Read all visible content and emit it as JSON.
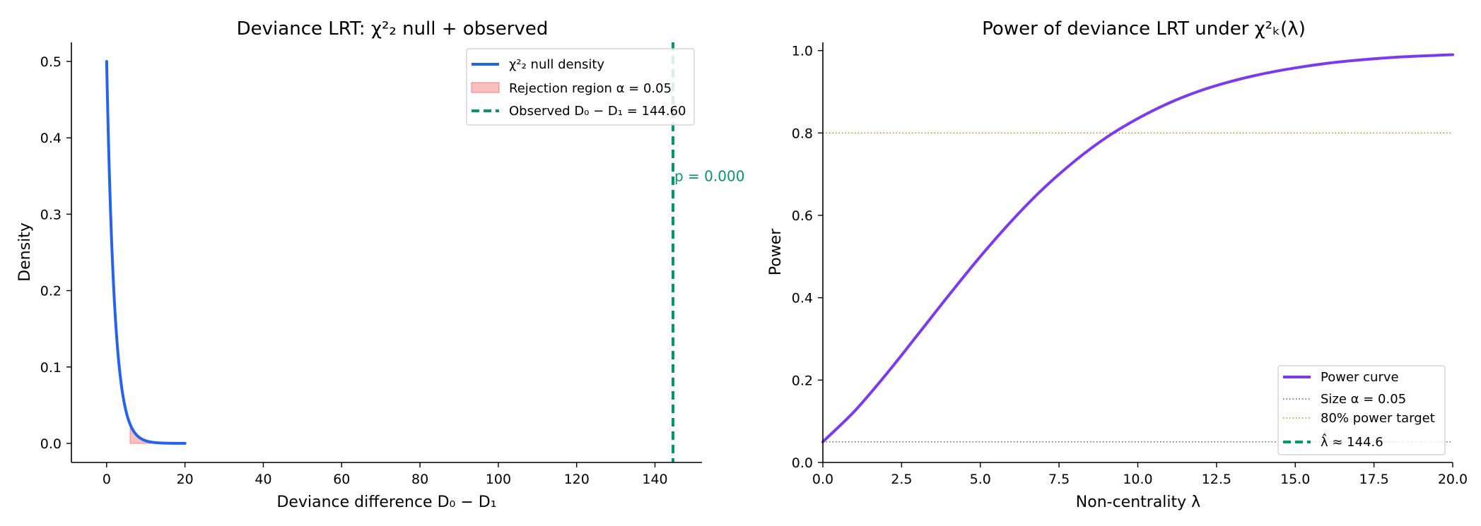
{
  "chart_data": [
    {
      "type": "line",
      "title": "Deviance LRT: χ²₂ null + observed",
      "xlabel": "Deviance difference D₀ − D₁",
      "ylabel": "Density",
      "xlim": [
        -9,
        152
      ],
      "ylim": [
        -0.025,
        0.525
      ],
      "xticks": [
        0,
        20,
        40,
        60,
        80,
        100,
        120,
        140
      ],
      "yticks": [
        0.0,
        0.1,
        0.2,
        0.3,
        0.4,
        0.5
      ],
      "xtick_labels": [
        "0",
        "20",
        "40",
        "60",
        "80",
        "100",
        "120",
        "140"
      ],
      "ytick_labels": [
        "0.0",
        "0.1",
        "0.2",
        "0.3",
        "0.4",
        "0.5"
      ],
      "grid": false,
      "legend_position": "top-right",
      "series": [
        {
          "name": "χ²₂ null density",
          "color": "#2563eb",
          "x": [
            0,
            1,
            2,
            3,
            4,
            5,
            6,
            7,
            8,
            10,
            12,
            14,
            16,
            18,
            20
          ],
          "y": [
            0.5,
            0.303,
            0.184,
            0.112,
            0.068,
            0.041,
            0.025,
            0.015,
            0.009,
            0.003,
            0.001,
            0.0005,
            0.0002,
            0.0001,
            2e-05
          ]
        }
      ],
      "rejection_region": {
        "name": "Rejection region α = 0.05",
        "color": "#ef4444",
        "x_start": 5.99,
        "x_end": 20
      },
      "observed": {
        "name": "Observed D₀ − D₁ = 144.60",
        "color": "#059669",
        "x": 144.6
      },
      "annotation": {
        "text": "p = 0.000",
        "x": 144.6,
        "y": 0.35
      },
      "legend": [
        "χ²₂ null density",
        "Rejection region α = 0.05",
        "Observed D₀ − D₁ = 144.60"
      ]
    },
    {
      "type": "line",
      "title": "Power of deviance LRT under χ²ₖ(λ)",
      "xlabel": "Non-centrality λ",
      "ylabel": "Power",
      "xlim": [
        0,
        20
      ],
      "ylim": [
        0,
        1.02
      ],
      "xticks": [
        0,
        2.5,
        5,
        7.5,
        10,
        12.5,
        15,
        17.5,
        20
      ],
      "yticks": [
        0.0,
        0.2,
        0.4,
        0.6,
        0.8,
        1.0
      ],
      "xtick_labels": [
        "0.0",
        "2.5",
        "5.0",
        "7.5",
        "10.0",
        "12.5",
        "15.0",
        "17.5",
        "20.0"
      ],
      "ytick_labels": [
        "0.0",
        "0.2",
        "0.4",
        "0.6",
        "0.8",
        "1.0"
      ],
      "grid": false,
      "legend_position": "bottom-right",
      "series": [
        {
          "name": "Power curve",
          "color": "#7c3aed",
          "x": [
            0,
            1,
            2,
            3,
            4,
            5,
            6,
            7,
            8,
            9,
            10,
            11,
            12,
            13,
            14,
            15,
            16,
            17,
            18,
            19,
            20
          ],
          "y": [
            0.05,
            0.124,
            0.213,
            0.309,
            0.406,
            0.5,
            0.587,
            0.665,
            0.732,
            0.789,
            0.835,
            0.873,
            0.903,
            0.926,
            0.944,
            0.958,
            0.969,
            0.977,
            0.983,
            0.987,
            0.99
          ]
        }
      ],
      "reference_lines": [
        {
          "name": "Size α = 0.05",
          "y": 0.05,
          "color": "#555555",
          "style": "dotted"
        },
        {
          "name": "80% power target",
          "y": 0.8,
          "color": "#d97706",
          "style": "dotted"
        }
      ],
      "lambda_hat": {
        "name": "λ̂ ≈ 144.6",
        "color": "#059669",
        "style": "dashed"
      },
      "legend": [
        "Power curve",
        "Size α = 0.05",
        "80% power target",
        "λ̂ ≈ 144.6"
      ]
    }
  ]
}
